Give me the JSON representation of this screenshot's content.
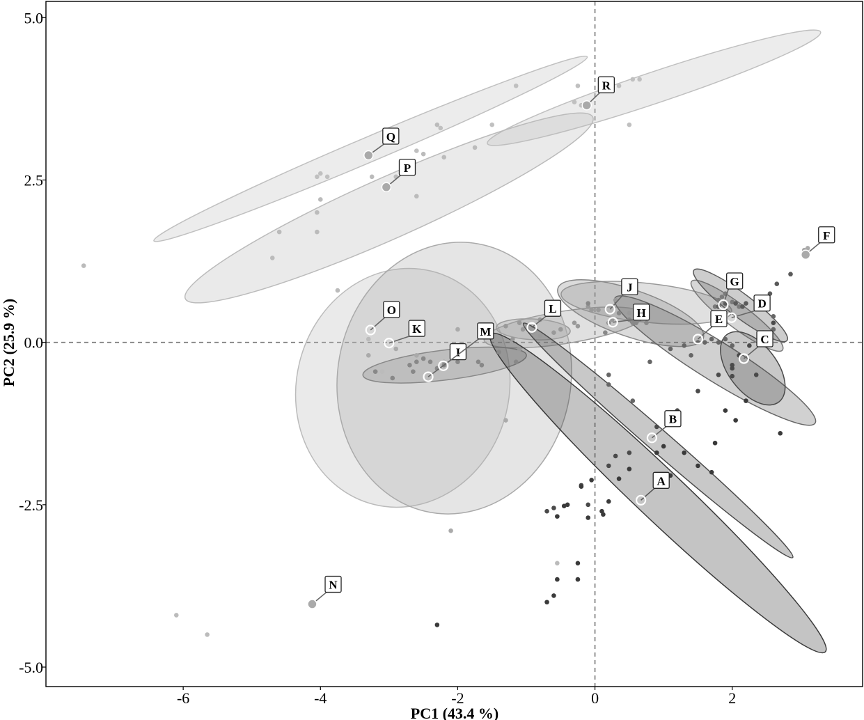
{
  "chart_data": {
    "type": "scatter",
    "title": "",
    "xlabel": "PC1 (43.4 %)",
    "ylabel": "PC2 (25.9 %)",
    "xlim": [
      -8.0,
      3.9
    ],
    "ylim": [
      -5.3,
      5.25
    ],
    "x_ticks": [
      -6,
      -4,
      -2,
      0,
      2
    ],
    "x_tick_labels": [
      "-6",
      "-4",
      "-2",
      "0",
      "2"
    ],
    "y_ticks": [
      5.0,
      2.5,
      0.0,
      -2.5,
      -5.0
    ],
    "y_tick_labels": [
      "5.0",
      "2.5",
      "0.0",
      "-2.5",
      "-5.0"
    ],
    "reference_lines": {
      "x": 0,
      "y": 0,
      "style": "dashed"
    },
    "grid": false,
    "legend": "none",
    "groups": [
      {
        "label": "A",
        "centroid": [
          0.67,
          -2.43
        ],
        "color": "#3a3a3a",
        "label_at": [
          0.96,
          -2.13
        ],
        "ellipse": {
          "cx": 0.92,
          "cy": -2.32,
          "rx": 3.36,
          "ry": 0.38,
          "angle": -43.5
        },
        "points": [
          [
            -0.55,
            -2.68
          ],
          [
            -0.45,
            -2.52
          ],
          [
            -0.4,
            -2.5
          ],
          [
            -0.2,
            -2.22
          ],
          [
            -0.05,
            -2.12
          ],
          [
            0.1,
            -2.6
          ],
          [
            0.12,
            -2.65
          ],
          [
            0.2,
            -2.45
          ],
          [
            0.35,
            -2.1
          ],
          [
            0.5,
            -1.95
          ],
          [
            0.9,
            -1.7
          ],
          [
            1.0,
            -1.6
          ],
          [
            1.1,
            -2.05
          ],
          [
            1.3,
            -1.7
          ],
          [
            1.5,
            -1.9
          ],
          [
            1.7,
            -2.0
          ],
          [
            1.75,
            -1.55
          ],
          [
            1.9,
            -1.05
          ],
          [
            2.05,
            -1.2
          ],
          [
            2.2,
            -0.9
          ],
          [
            2.7,
            -1.4
          ],
          [
            -0.1,
            -2.7
          ],
          [
            -0.25,
            -3.4
          ],
          [
            -0.25,
            -3.65
          ],
          [
            -0.55,
            -3.65
          ],
          [
            -0.6,
            -3.9
          ],
          [
            -0.7,
            -4.0
          ],
          [
            -2.3,
            -4.35
          ]
        ]
      },
      {
        "label": "B",
        "centroid": [
          0.83,
          -1.47
        ],
        "color": "#4a4a4a",
        "label_at": [
          1.13,
          -1.18
        ],
        "ellipse": {
          "cx": 0.92,
          "cy": -1.51,
          "rx": 2.6,
          "ry": 0.17,
          "angle": -41.0
        },
        "points": [
          [
            -0.7,
            -2.6
          ],
          [
            -0.6,
            -2.55
          ],
          [
            -0.2,
            -2.2
          ],
          [
            0.2,
            -1.9
          ],
          [
            0.5,
            -1.7
          ],
          [
            0.9,
            -1.3
          ],
          [
            1.2,
            -1.05
          ],
          [
            1.5,
            -0.75
          ],
          [
            1.8,
            -0.5
          ],
          [
            2.0,
            -0.35
          ],
          [
            0.3,
            -1.75
          ],
          [
            -0.1,
            -2.5
          ]
        ]
      },
      {
        "label": "C",
        "centroid": [
          2.17,
          -0.25
        ],
        "color": "#4a4a4a",
        "label_at": [
          2.47,
          0.05
        ],
        "ellipse": {
          "cx": 2.3,
          "cy": -0.4,
          "rx": 0.62,
          "ry": 0.37,
          "angle": -52.0
        },
        "points": [
          [
            2.0,
            -0.4
          ],
          [
            2.1,
            -0.2
          ],
          [
            2.25,
            -0.05
          ],
          [
            2.35,
            -0.5
          ],
          [
            2.0,
            -0.52
          ],
          [
            2.6,
            0.3
          ],
          [
            2.45,
            0.15
          ]
        ]
      },
      {
        "label": "D",
        "centroid": [
          1.99,
          0.38
        ],
        "color": "#5a5a5a",
        "label_at": [
          2.43,
          0.6
        ],
        "ellipse": {
          "cx": 2.12,
          "cy": 0.57,
          "rx": 0.85,
          "ry": 0.18,
          "angle": -37.0
        },
        "points": [
          [
            1.8,
            0.55
          ],
          [
            1.9,
            0.6
          ],
          [
            2.05,
            0.6
          ],
          [
            2.15,
            0.55
          ],
          [
            2.2,
            0.6
          ],
          [
            2.35,
            0.7
          ],
          [
            2.55,
            0.75
          ],
          [
            2.65,
            0.9
          ],
          [
            2.85,
            1.05
          ]
        ]
      },
      {
        "label": "E",
        "centroid": [
          1.5,
          0.05
        ],
        "color": "#666666",
        "label_at": [
          1.8,
          0.36
        ],
        "ellipse": {
          "cx": 1.75,
          "cy": -0.28,
          "rx": 1.72,
          "ry": 0.3,
          "angle": -32.0
        },
        "points": [
          [
            0.2,
            -0.5
          ],
          [
            0.8,
            -0.3
          ],
          [
            1.1,
            -0.1
          ],
          [
            1.3,
            -0.05
          ],
          [
            1.5,
            0.0
          ],
          [
            1.6,
            0.0
          ],
          [
            1.7,
            0.05
          ],
          [
            1.8,
            0.0
          ],
          [
            1.9,
            0.05
          ],
          [
            2.0,
            -0.05
          ],
          [
            1.4,
            -0.2
          ],
          [
            0.55,
            -0.9
          ],
          [
            0.2,
            -0.65
          ],
          [
            2.6,
            0.4
          ],
          [
            2.6,
            0.2
          ]
        ]
      },
      {
        "label": "F",
        "centroid": [
          3.07,
          1.35
        ],
        "color": "#aaaaaa",
        "label_at": [
          3.37,
          1.65
        ],
        "ellipse": null,
        "points": [
          [
            3.05,
            1.42
          ],
          [
            3.1,
            1.45
          ]
        ]
      },
      {
        "label": "G",
        "centroid": [
          1.87,
          0.58
        ],
        "color": "#7a7a7a",
        "label_at": [
          2.03,
          0.94
        ],
        "ellipse": {
          "cx": 2.07,
          "cy": 0.41,
          "rx": 0.83,
          "ry": 0.18,
          "angle": -37.0
        },
        "points": [
          [
            1.8,
            0.65
          ],
          [
            1.85,
            0.7
          ],
          [
            1.9,
            0.75
          ],
          [
            2.0,
            0.62
          ],
          [
            2.1,
            0.55
          ],
          [
            1.75,
            0.55
          ]
        ]
      },
      {
        "label": "H",
        "centroid": [
          0.26,
          0.31
        ],
        "color": "#888888",
        "label_at": [
          0.67,
          0.46
        ],
        "ellipse": {
          "cx": 0.52,
          "cy": 0.45,
          "rx": 1.12,
          "ry": 0.36,
          "angle": -19.0
        },
        "points": [
          [
            0.35,
            0.45
          ],
          [
            0.5,
            0.35
          ],
          [
            0.55,
            0.3
          ],
          [
            0.2,
            0.3
          ],
          [
            0.15,
            0.15
          ],
          [
            -0.1,
            0.6
          ],
          [
            0.6,
            0.3
          ],
          [
            0.75,
            0.3
          ]
        ]
      },
      {
        "label": "I",
        "centroid": [
          -2.43,
          -0.53
        ],
        "color": "#888888",
        "label_at": [
          -2.0,
          -0.15
        ],
        "ellipse": {
          "cx": -2.19,
          "cy": -0.35,
          "rx": 1.2,
          "ry": 0.23,
          "angle": 7.0
        },
        "points": [
          [
            -3.2,
            -0.45
          ],
          [
            -2.95,
            -0.55
          ],
          [
            -2.7,
            -0.35
          ],
          [
            -2.6,
            -0.3
          ],
          [
            -2.5,
            -0.25
          ],
          [
            -2.4,
            -0.3
          ],
          [
            -2.3,
            -0.4
          ],
          [
            -2.2,
            -0.35
          ],
          [
            -2.0,
            -0.3
          ],
          [
            -1.7,
            -0.3
          ],
          [
            -1.65,
            -0.35
          ],
          [
            -1.4,
            -0.15
          ],
          [
            -1.15,
            -0.3
          ],
          [
            -2.65,
            -0.45
          ]
        ]
      },
      {
        "label": "J",
        "centroid": [
          0.22,
          0.51
        ],
        "color": "#999999",
        "label_at": [
          0.5,
          0.85
        ],
        "ellipse": {
          "cx": 0.75,
          "cy": 0.61,
          "rx": 1.25,
          "ry": 0.3,
          "angle": -6.0
        },
        "points": [
          [
            -0.1,
            0.55
          ],
          [
            0.05,
            0.5
          ],
          [
            0.3,
            0.65
          ],
          [
            0.5,
            0.45
          ],
          [
            0.7,
            0.5
          ],
          [
            -0.25,
            0.25
          ],
          [
            0.25,
            0.35
          ]
        ]
      },
      {
        "label": "K",
        "centroid": [
          -3.0,
          -0.01
        ],
        "color": "#aaaaaa",
        "label_at": [
          -2.6,
          0.21
        ],
        "ellipse": {
          "cx": -2.05,
          "cy": -0.55,
          "rx": 1.7,
          "ry": 2.1,
          "angle": -10.0
        },
        "points": [
          [
            -3.3,
            -0.2
          ],
          [
            -2.9,
            -0.1
          ],
          [
            -2.6,
            -0.2
          ],
          [
            -2.2,
            -0.3
          ],
          [
            -1.3,
            -1.2
          ],
          [
            -2.1,
            -2.9
          ],
          [
            -2.0,
            0.2
          ]
        ]
      },
      {
        "label": "L",
        "centroid": [
          -0.92,
          0.23
        ],
        "color": "#999999",
        "label_at": [
          -0.62,
          0.52
        ],
        "ellipse": {
          "cx": -0.9,
          "cy": 0.2,
          "rx": 0.54,
          "ry": 0.16,
          "angle": -3.0
        },
        "points": [
          [
            -1.3,
            0.25
          ],
          [
            -1.1,
            0.3
          ],
          [
            -0.8,
            0.35
          ],
          [
            -0.6,
            0.15
          ],
          [
            -0.9,
            0.15
          ],
          [
            -1.05,
            0.2
          ]
        ]
      },
      {
        "label": "M",
        "centroid": [
          -2.21,
          -0.36
        ],
        "color": "#999999",
        "label_at": [
          -1.6,
          0.17
        ],
        "ellipse": {
          "cx": -0.45,
          "cy": 0.23,
          "rx": 1.18,
          "ry": 0.25,
          "angle": 9.0
        },
        "points": [
          [
            -1.2,
            0.05
          ],
          [
            -1.1,
            -0.1
          ],
          [
            -0.8,
            0.1
          ],
          [
            -0.5,
            0.2
          ],
          [
            -0.3,
            0.3
          ],
          [
            -0.05,
            0.5
          ]
        ]
      },
      {
        "label": "N",
        "centroid": [
          -4.12,
          -4.03
        ],
        "color": "#bbbbbb",
        "label_at": [
          -3.82,
          -3.73
        ],
        "ellipse": null,
        "points": [
          [
            -6.1,
            -4.2
          ],
          [
            -5.65,
            -4.5
          ],
          [
            -0.55,
            -3.4
          ]
        ]
      },
      {
        "label": "O",
        "centroid": [
          -3.27,
          0.19
        ],
        "color": "#bbbbbb",
        "label_at": [
          -2.97,
          0.5
        ],
        "ellipse": {
          "cx": -2.8,
          "cy": -0.7,
          "rx": 1.55,
          "ry": 1.85,
          "angle": -14.0
        },
        "points": [
          [
            -7.45,
            1.18
          ],
          [
            -4.7,
            1.3
          ],
          [
            -4.6,
            1.7
          ],
          [
            -4.05,
            2.0
          ],
          [
            -4.05,
            1.7
          ],
          [
            -3.75,
            0.8
          ],
          [
            -3.1,
            -0.45
          ],
          [
            -3.3,
            0.05
          ]
        ]
      },
      {
        "label": "P",
        "centroid": [
          -3.04,
          2.39
        ],
        "color": "#bbbbbb",
        "label_at": [
          -2.74,
          2.69
        ],
        "ellipse": {
          "cx": -3.0,
          "cy": 2.07,
          "rx": 3.25,
          "ry": 0.47,
          "angle": 24.0
        },
        "points": [
          [
            -3.25,
            2.55
          ],
          [
            -2.9,
            2.55
          ],
          [
            -2.6,
            2.25
          ],
          [
            -2.5,
            2.9
          ],
          [
            -2.3,
            3.35
          ],
          [
            -2.2,
            2.85
          ],
          [
            -4.0,
            2.2
          ],
          [
            -1.75,
            3.0
          ]
        ]
      },
      {
        "label": "Q",
        "centroid": [
          -3.3,
          2.88
        ],
        "color": "#c0c0c0",
        "label_at": [
          -2.98,
          3.17
        ],
        "ellipse": {
          "cx": -3.27,
          "cy": 2.98,
          "rx": 3.43,
          "ry": 0.19,
          "angle": 23.0
        },
        "points": [
          [
            -4.05,
            2.55
          ],
          [
            -4.0,
            2.6
          ],
          [
            -3.9,
            2.55
          ],
          [
            -2.25,
            3.3
          ],
          [
            -1.5,
            3.35
          ],
          [
            -1.15,
            3.95
          ],
          [
            -2.6,
            2.95
          ]
        ]
      },
      {
        "label": "R",
        "centroid": [
          -0.12,
          3.65
        ],
        "color": "#c0c0c0",
        "label_at": [
          0.16,
          3.96
        ],
        "ellipse": {
          "cx": 0.86,
          "cy": 3.92,
          "rx": 2.56,
          "ry": 0.24,
          "angle": 18.5
        },
        "points": [
          [
            -0.2,
            3.65
          ],
          [
            -0.3,
            3.7
          ],
          [
            0.1,
            3.95
          ],
          [
            0.55,
            4.05
          ],
          [
            0.65,
            4.05
          ],
          [
            0.35,
            3.95
          ],
          [
            0.5,
            3.35
          ],
          [
            -0.25,
            3.95
          ]
        ]
      }
    ]
  }
}
